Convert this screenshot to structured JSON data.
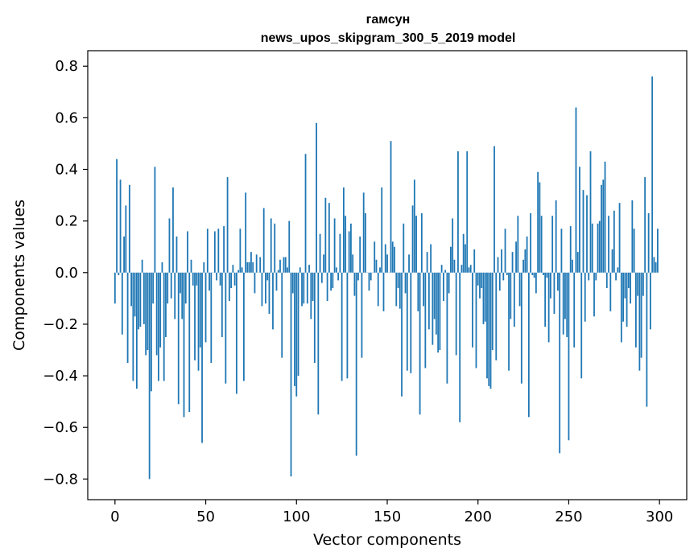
{
  "chart_data": {
    "type": "bar",
    "title_lines": [
      "гамсун",
      "news_upos_skipgram_300_5_2019 model"
    ],
    "xlabel": "Vector components",
    "ylabel": "Components values",
    "xlim": [
      -15,
      315
    ],
    "ylim": [
      -0.88,
      0.86
    ],
    "xticks": [
      0,
      50,
      100,
      150,
      200,
      250,
      300
    ],
    "yticks": [
      -0.8,
      -0.6,
      -0.4,
      -0.2,
      0.0,
      0.2,
      0.4,
      0.6,
      0.8
    ],
    "ytick_labels": [
      "−0.8",
      "−0.6",
      "−0.4",
      "−0.2",
      "0.0",
      "0.2",
      "0.4",
      "0.6",
      "0.8"
    ],
    "bar_color": "#1f77b4",
    "grid": false,
    "x": [
      0,
      1,
      2,
      3,
      4,
      5,
      6,
      7,
      8,
      9,
      10,
      11,
      12,
      13,
      14,
      15,
      16,
      17,
      18,
      19,
      20,
      21,
      22,
      23,
      24,
      25,
      26,
      27,
      28,
      29,
      30,
      31,
      32,
      33,
      34,
      35,
      36,
      37,
      38,
      39,
      40,
      41,
      42,
      43,
      44,
      45,
      46,
      47,
      48,
      49,
      50,
      51,
      52,
      53,
      54,
      55,
      56,
      57,
      58,
      59,
      60,
      61,
      62,
      63,
      64,
      65,
      66,
      67,
      68,
      69,
      70,
      71,
      72,
      73,
      74,
      75,
      76,
      77,
      78,
      79,
      80,
      81,
      82,
      83,
      84,
      85,
      86,
      87,
      88,
      89,
      90,
      91,
      92,
      93,
      94,
      95,
      96,
      97,
      98,
      99,
      100,
      101,
      102,
      103,
      104,
      105,
      106,
      107,
      108,
      109,
      110,
      111,
      112,
      113,
      114,
      115,
      116,
      117,
      118,
      119,
      120,
      121,
      122,
      123,
      124,
      125,
      126,
      127,
      128,
      129,
      130,
      131,
      132,
      133,
      134,
      135,
      136,
      137,
      138,
      139,
      140,
      141,
      142,
      143,
      144,
      145,
      146,
      147,
      148,
      149,
      150,
      151,
      152,
      153,
      154,
      155,
      156,
      157,
      158,
      159,
      160,
      161,
      162,
      163,
      164,
      165,
      166,
      167,
      168,
      169,
      170,
      171,
      172,
      173,
      174,
      175,
      176,
      177,
      178,
      179,
      180,
      181,
      182,
      183,
      184,
      185,
      186,
      187,
      188,
      189,
      190,
      191,
      192,
      193,
      194,
      195,
      196,
      197,
      198,
      199,
      200,
      201,
      202,
      203,
      204,
      205,
      206,
      207,
      208,
      209,
      210,
      211,
      212,
      213,
      214,
      215,
      216,
      217,
      218,
      219,
      220,
      221,
      222,
      223,
      224,
      225,
      226,
      227,
      228,
      229,
      230,
      231,
      232,
      233,
      234,
      235,
      236,
      237,
      238,
      239,
      240,
      241,
      242,
      243,
      244,
      245,
      246,
      247,
      248,
      249,
      250,
      251,
      252,
      253,
      254,
      255,
      256,
      257,
      258,
      259,
      260,
      261,
      262,
      263,
      264,
      265,
      266,
      267,
      268,
      269,
      270,
      271,
      272,
      273,
      274,
      275,
      276,
      277,
      278,
      279,
      280,
      281,
      282,
      283,
      284,
      285,
      286,
      287,
      288,
      289,
      290,
      291,
      292,
      293,
      294,
      295,
      296,
      297,
      298,
      299
    ],
    "values": [
      -0.12,
      0.44,
      -0.01,
      0.36,
      -0.24,
      0.14,
      0.26,
      -0.35,
      0.34,
      -0.13,
      -0.42,
      -0.17,
      -0.45,
      -0.22,
      -0.21,
      0.05,
      -0.2,
      -0.32,
      -0.3,
      -0.8,
      -0.46,
      -0.12,
      0.41,
      -0.32,
      -0.42,
      -0.29,
      0.04,
      -0.42,
      -0.25,
      -0.12,
      0.21,
      -0.1,
      0.33,
      -0.18,
      0.14,
      -0.51,
      -0.08,
      -0.18,
      -0.56,
      -0.12,
      0.16,
      -0.54,
      0.05,
      -0.05,
      -0.34,
      -0.05,
      -0.38,
      -0.29,
      -0.66,
      0.04,
      -0.27,
      0.17,
      -0.07,
      -0.35,
      0.0,
      0.16,
      -0.03,
      0.17,
      -0.05,
      -0.25,
      0.18,
      -0.43,
      0.37,
      -0.11,
      -0.06,
      0.03,
      -0.05,
      -0.47,
      0.01,
      0.17,
      0.02,
      -0.42,
      0.31,
      0.04,
      0.04,
      0.08,
      0.04,
      -0.08,
      0.07,
      0.0,
      0.06,
      -0.13,
      0.25,
      -0.12,
      -0.03,
      -0.16,
      0.21,
      -0.22,
      0.19,
      -0.07,
      0.01,
      0.05,
      -0.33,
      0.06,
      0.06,
      0.02,
      0.2,
      -0.79,
      -0.08,
      -0.44,
      -0.48,
      -0.4,
      0.02,
      -0.13,
      -0.12,
      0.46,
      -0.12,
      0.03,
      -0.18,
      -0.11,
      -0.35,
      0.58,
      -0.55,
      0.15,
      -0.04,
      0.07,
      0.29,
      -0.11,
      0.27,
      -0.07,
      -0.06,
      0.21,
      0.02,
      -0.03,
      0.15,
      -0.42,
      0.33,
      0.22,
      -0.41,
      0.16,
      0.19,
      0.07,
      -0.09,
      -0.71,
      -0.03,
      0.14,
      -0.33,
      0.31,
      0.23,
      0.0,
      -0.07,
      -0.03,
      0.0,
      0.12,
      0.05,
      -0.13,
      0.02,
      0.33,
      -0.15,
      0.11,
      0.07,
      0.0,
      0.51,
      0.12,
      0.1,
      -0.13,
      -0.06,
      -0.14,
      -0.48,
      0.19,
      -0.08,
      -0.38,
      0.07,
      -0.39,
      0.26,
      0.36,
      0.22,
      -0.15,
      -0.55,
      0.23,
      -0.13,
      -0.37,
      0.08,
      -0.22,
      0.11,
      -0.28,
      -0.18,
      -0.24,
      -0.31,
      -0.3,
      0.03,
      -0.11,
      0.01,
      -0.43,
      -0.08,
      0.1,
      0.21,
      0.05,
      -0.32,
      0.47,
      -0.58,
      0.03,
      0.15,
      0.11,
      0.47,
      0.02,
      0.03,
      -0.29,
      0.09,
      -0.37,
      -0.05,
      -0.1,
      -0.06,
      -0.2,
      -0.19,
      -0.41,
      -0.44,
      -0.45,
      -0.3,
      0.49,
      -0.34,
      0.06,
      -0.07,
      0.09,
      -0.03,
      0.17,
      -0.01,
      -0.38,
      -0.18,
      0.08,
      -0.21,
      0.12,
      0.22,
      -0.13,
      -0.43,
      0.05,
      0.09,
      0.14,
      -0.56,
      0.23,
      -0.01,
      -0.02,
      -0.08,
      0.39,
      0.35,
      0.22,
      -0.01,
      -0.21,
      -0.02,
      -0.27,
      -0.1,
      0.22,
      -0.16,
      0.28,
      -0.07,
      -0.7,
      0.17,
      -0.24,
      -0.18,
      -0.25,
      -0.65,
      0.18,
      0.05,
      -0.29,
      0.64,
      0.08,
      0.41,
      -0.41,
      0.32,
      -0.19,
      0.3,
      -0.03,
      0.47,
      0.19,
      -0.17,
      -0.03,
      0.19,
      0.2,
      0.34,
      0.36,
      0.43,
      -0.06,
      0.22,
      -0.15,
      0.09,
      0.24,
      -0.03,
      0.02,
      0.27,
      -0.27,
      -0.19,
      -0.1,
      -0.21,
      -0.06,
      -0.12,
      0.28,
      0.17,
      -0.29,
      -0.09,
      -0.38,
      -0.33,
      -0.09,
      0.37,
      -0.52,
      0.23,
      -0.22,
      0.76,
      0.06,
      0.04,
      0.17
    ]
  }
}
